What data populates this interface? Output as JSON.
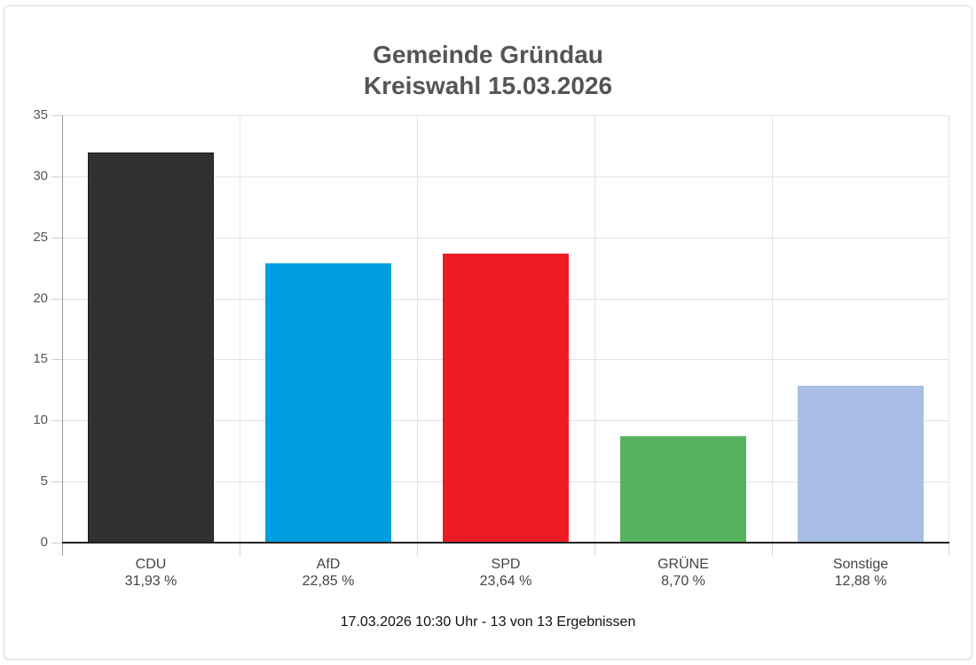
{
  "header": {
    "title_line1": "Gemeinde Gründau",
    "title_line2": "Kreiswahl 15.03.2026"
  },
  "footer": {
    "status": "17.03.2026 10:30 Uhr - 13 von 13 Ergebnissen"
  },
  "y_axis": {
    "ticks": [
      "35",
      "30",
      "25",
      "20",
      "15",
      "10",
      "5",
      "0"
    ]
  },
  "bars": [
    {
      "party": "CDU",
      "label": "31,93 %",
      "value": 31.93,
      "color": "#323031"
    },
    {
      "party": "AfD",
      "label": "22,85 %",
      "value": 22.85,
      "color": "#009ee0"
    },
    {
      "party": "SPD",
      "label": "23,64 %",
      "value": 23.64,
      "color": "#ed1c24"
    },
    {
      "party": "GRÜNE",
      "label": "8,70 %",
      "value": 8.7,
      "color": "#57b25f"
    },
    {
      "party": "Sonstige",
      "label": "12,88 %",
      "value": 12.88,
      "color": "#aabee5"
    }
  ],
  "chart_data": {
    "type": "bar",
    "title": "Gemeinde Gründau\nKreiswahl 15.03.2026",
    "categories": [
      "CDU",
      "AfD",
      "SPD",
      "GRÜNE",
      "Sonstige"
    ],
    "values": [
      31.93,
      22.85,
      23.64,
      8.7,
      12.88
    ],
    "value_labels": [
      "31,93 %",
      "22,85 %",
      "23,64 %",
      "8,70 %",
      "12,88 %"
    ],
    "colors": [
      "#323031",
      "#009ee0",
      "#ed1c24",
      "#57b25f",
      "#aabee5"
    ],
    "xlabel": "",
    "ylabel": "",
    "ylim": [
      0,
      35
    ],
    "yticks": [
      0,
      5,
      10,
      15,
      20,
      25,
      30,
      35
    ],
    "grid": true,
    "legend": "none",
    "annotation": "17.03.2026 10:30 Uhr - 13 von 13 Ergebnissen"
  }
}
